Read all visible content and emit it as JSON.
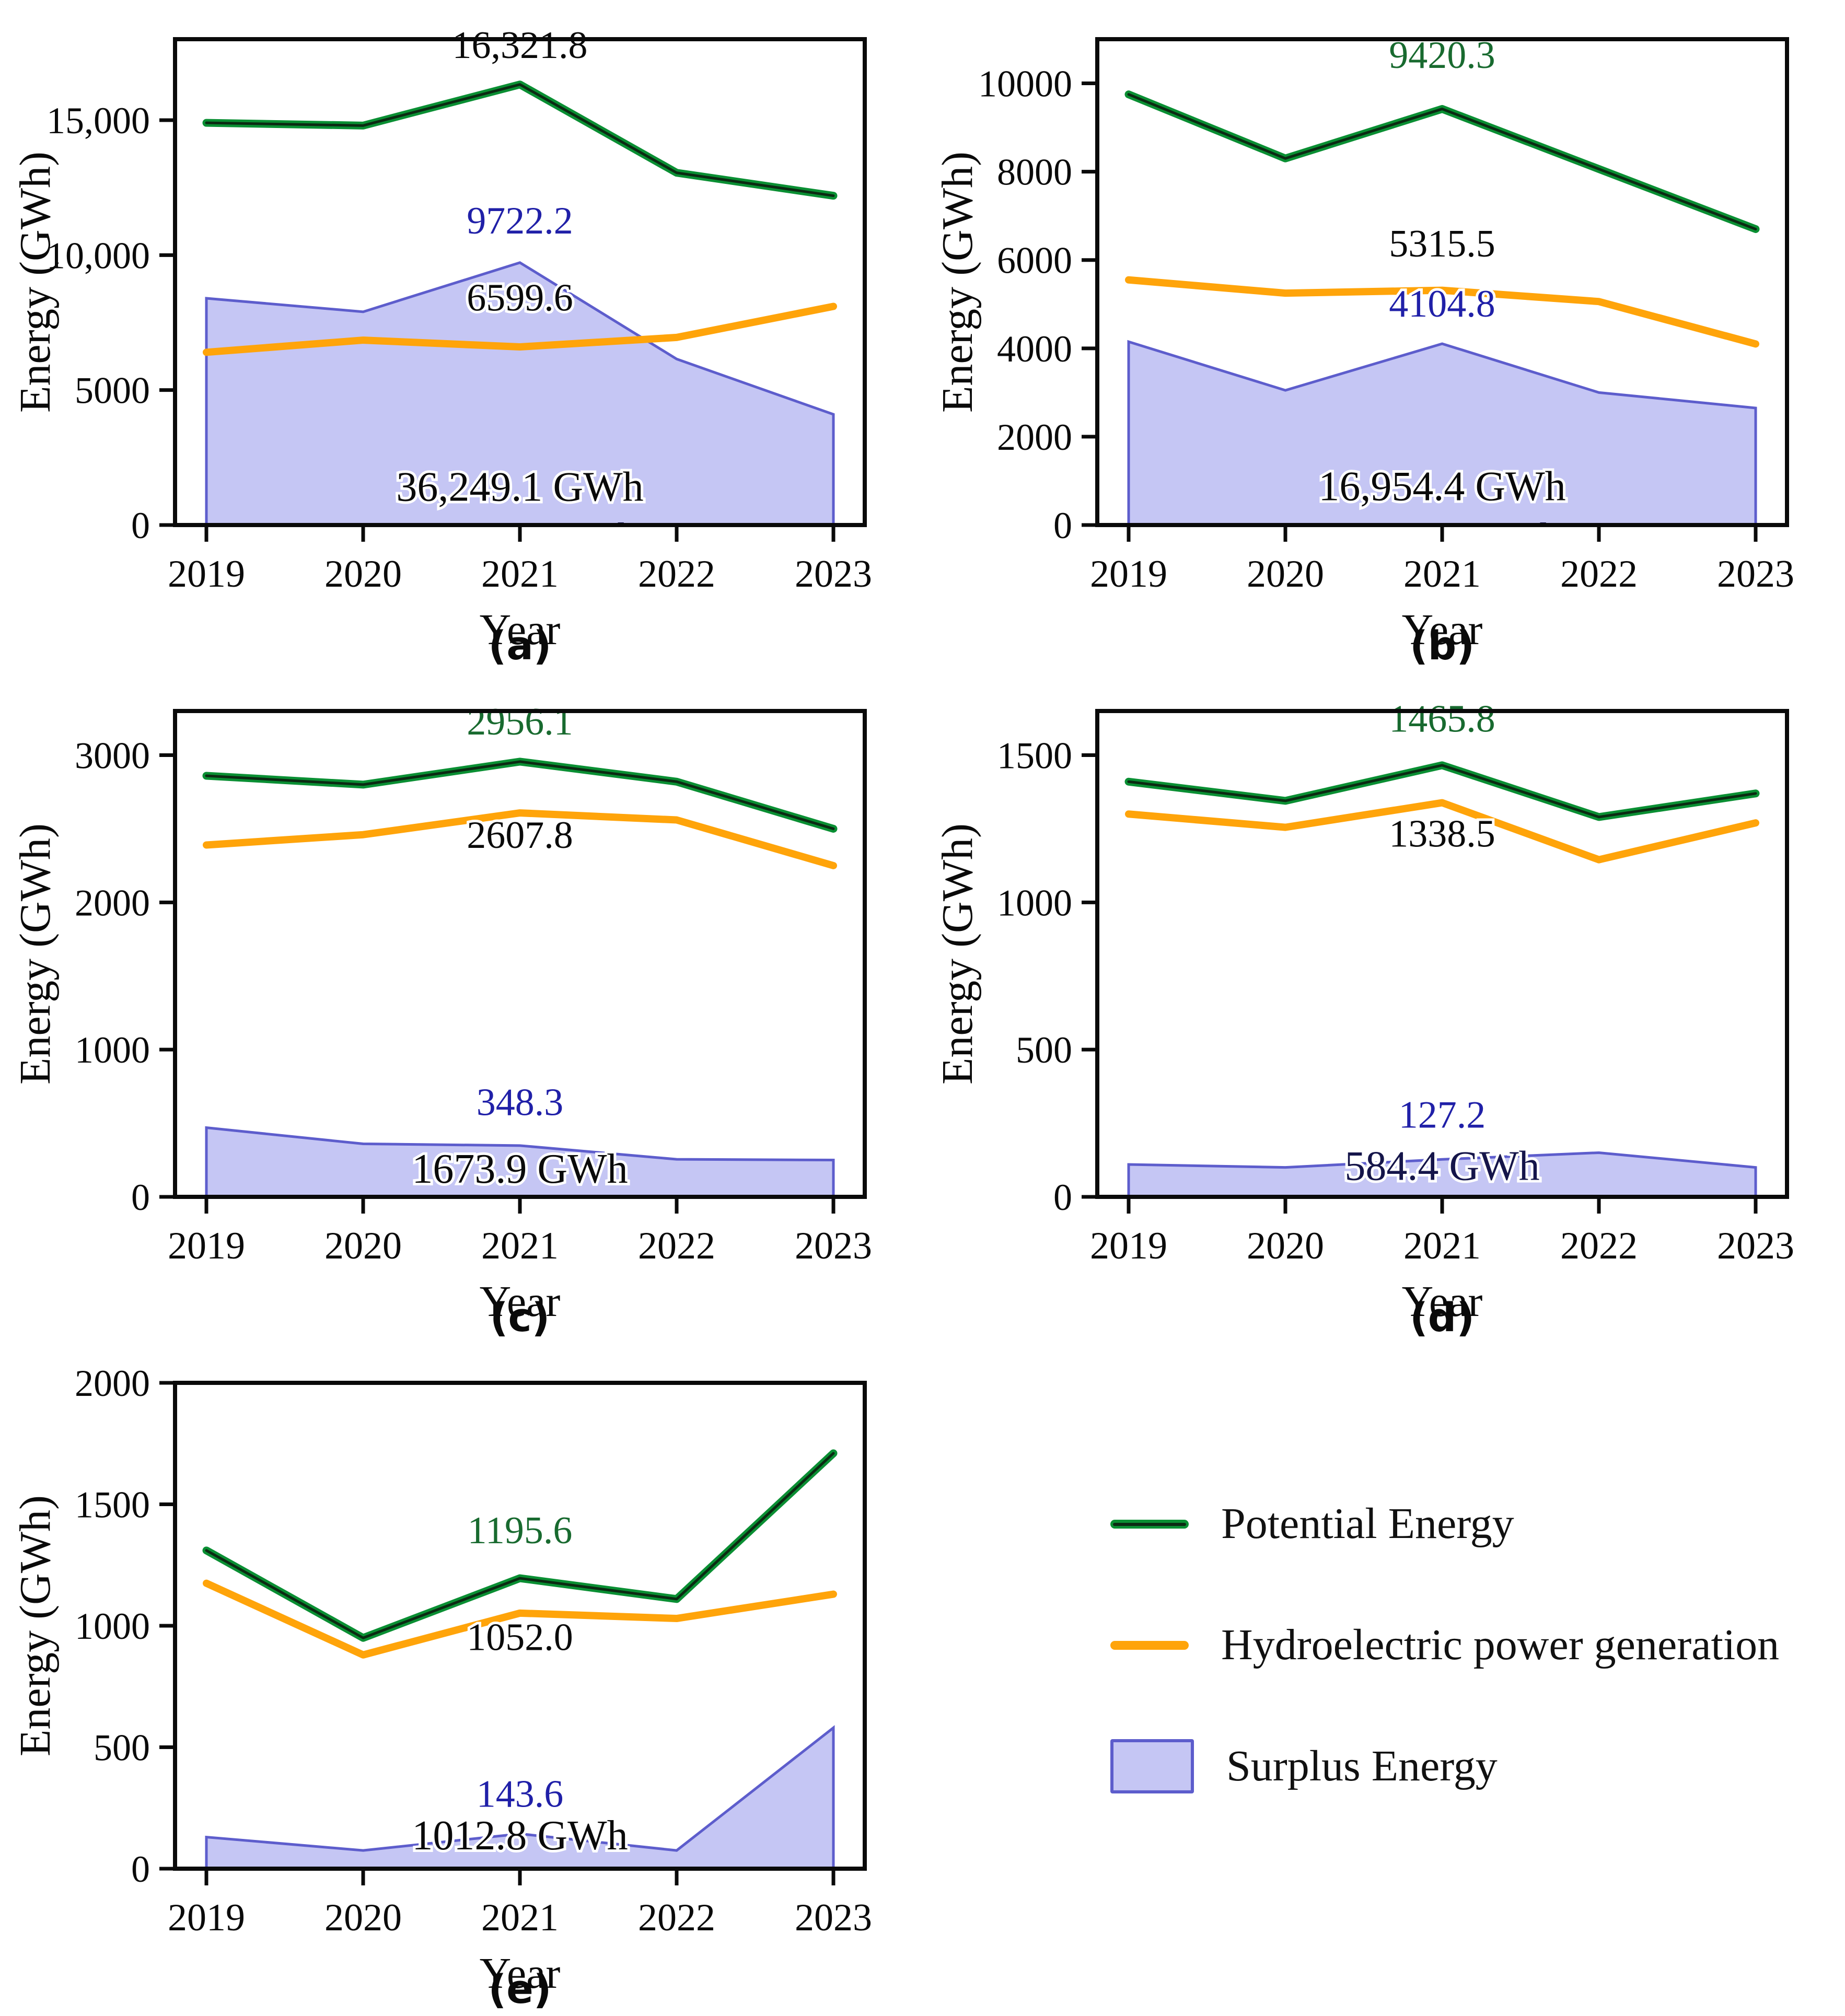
{
  "figure": {
    "xlabel": "Year",
    "ylabel": "Energy (GWh)",
    "years": [
      "2019",
      "2020",
      "2021",
      "2022",
      "2023"
    ]
  },
  "colors": {
    "potential_line": "#0a8f33",
    "potential_core": "#0b2a12",
    "hydro_line": "#ffa40a",
    "surplus_fill": "#c5c6f4",
    "surplus_edge": "#5d5dcc",
    "axis_black": "#0a0a0a",
    "annotation_black": "#0a0a0a",
    "annotation_green": "#186a2f",
    "annotation_navy": "#2020a8",
    "annotation_darknavy": "#15154a"
  },
  "legend": {
    "items": [
      {
        "label": "Potential Energy",
        "swatch": "line-green"
      },
      {
        "label": "Hydroelectric power generation",
        "swatch": "line-orange"
      },
      {
        "label": "Surplus Energy",
        "swatch": "patch-purple"
      }
    ]
  },
  "chart_data": [
    {
      "id": "a",
      "caption": "(a)",
      "type": "line+area",
      "x": [
        2019,
        2020,
        2021,
        2022,
        2023
      ],
      "xlabel": "Year",
      "ylabel": "Energy (GWh)",
      "ylim": [
        0,
        18000
      ],
      "yticks": [
        {
          "v": 0,
          "label": "0"
        },
        {
          "v": 5000,
          "label": "5000"
        },
        {
          "v": 10000,
          "label": "10,000"
        },
        {
          "v": 15000,
          "label": "15,000"
        }
      ],
      "series": [
        {
          "name": "Potential Energy",
          "kind": "line",
          "values": [
            14900,
            14800,
            16321.8,
            13050,
            12200
          ]
        },
        {
          "name": "Hydroelectric power generation",
          "kind": "line",
          "values": [
            6400,
            6850,
            6599.6,
            6950,
            8100
          ]
        },
        {
          "name": "Surplus Energy",
          "kind": "area",
          "values": [
            8400,
            7900,
            9722.2,
            6150,
            4100
          ]
        }
      ],
      "annotations": [
        {
          "text": "16,321.8",
          "color": "black",
          "year": 2021,
          "y": 17300
        },
        {
          "text": "9722.2",
          "color": "navy",
          "year": 2021,
          "y": 10800
        },
        {
          "text": "6599.6",
          "color": "black",
          "year": 2021,
          "y": 7950
        },
        {
          "text": "36,249.1 GWh",
          "color": "black",
          "year": 2021,
          "y": 900
        }
      ],
      "clipped_remnant": true
    },
    {
      "id": "b",
      "caption": "(b)",
      "type": "line+area",
      "x": [
        2019,
        2020,
        2021,
        2022,
        2023
      ],
      "xlabel": "Year",
      "ylabel": "Energy (GWh)",
      "ylim": [
        0,
        11000
      ],
      "yticks": [
        {
          "v": 0,
          "label": "0"
        },
        {
          "v": 2000,
          "label": "2000"
        },
        {
          "v": 4000,
          "label": "4000"
        },
        {
          "v": 6000,
          "label": "6000"
        },
        {
          "v": 8000,
          "label": "8000"
        },
        {
          "v": 10000,
          "label": "10000"
        }
      ],
      "series": [
        {
          "name": "Potential Energy",
          "kind": "line",
          "values": [
            9750,
            8300,
            9420.3,
            8060,
            6700
          ]
        },
        {
          "name": "Hydroelectric power generation",
          "kind": "line",
          "values": [
            5550,
            5250,
            5315.5,
            5060,
            4100
          ]
        },
        {
          "name": "Surplus Energy",
          "kind": "area",
          "values": [
            4150,
            3050,
            4104.8,
            3000,
            2650
          ]
        }
      ],
      "annotations": [
        {
          "text": "9420.3",
          "color": "green",
          "year": 2021,
          "y": 10350
        },
        {
          "text": "5315.5",
          "color": "black",
          "year": 2021,
          "y": 6080
        },
        {
          "text": "4104.8",
          "color": "navy",
          "year": 2021,
          "y": 4720
        },
        {
          "text": "16,954.4 GWh",
          "color": "black",
          "year": 2021,
          "y": 560
        }
      ],
      "clipped_remnant": true
    },
    {
      "id": "c",
      "caption": "(c)",
      "type": "line+area",
      "x": [
        2019,
        2020,
        2021,
        2022,
        2023
      ],
      "xlabel": "Year",
      "ylabel": "Energy (GWh)",
      "ylim": [
        0,
        3300
      ],
      "yticks": [
        {
          "v": 0,
          "label": "0"
        },
        {
          "v": 1000,
          "label": "1000"
        },
        {
          "v": 2000,
          "label": "2000"
        },
        {
          "v": 3000,
          "label": "3000"
        }
      ],
      "series": [
        {
          "name": "Potential Energy",
          "kind": "line",
          "values": [
            2860,
            2800,
            2956.1,
            2820,
            2500
          ]
        },
        {
          "name": "Hydroelectric power generation",
          "kind": "line",
          "values": [
            2390,
            2460,
            2607.8,
            2560,
            2250
          ]
        },
        {
          "name": "Surplus Energy",
          "kind": "area",
          "values": [
            470,
            360,
            348.3,
            255,
            250
          ]
        }
      ],
      "annotations": [
        {
          "text": "2956.1",
          "color": "green",
          "year": 2021,
          "y": 3140
        },
        {
          "text": "2607.8",
          "color": "black",
          "year": 2021,
          "y": 2370
        },
        {
          "text": "348.3",
          "color": "navy",
          "year": 2021,
          "y": 555
        },
        {
          "text": "1673.9 GWh",
          "color": "black",
          "year": 2021,
          "y": 95
        }
      ],
      "clipped_remnant": false
    },
    {
      "id": "d",
      "caption": "(d)",
      "type": "line+area",
      "x": [
        2019,
        2020,
        2021,
        2022,
        2023
      ],
      "xlabel": "Year",
      "ylabel": "Energy (GWh)",
      "ylim": [
        0,
        1650
      ],
      "yticks": [
        {
          "v": 0,
          "label": "0"
        },
        {
          "v": 500,
          "label": "500"
        },
        {
          "v": 1000,
          "label": "1000"
        },
        {
          "v": 1500,
          "label": "1500"
        }
      ],
      "series": [
        {
          "name": "Potential Energy",
          "kind": "line",
          "values": [
            1410,
            1345,
            1465.8,
            1290,
            1370
          ]
        },
        {
          "name": "Hydroelectric power generation",
          "kind": "line",
          "values": [
            1300,
            1255,
            1338.5,
            1145,
            1270
          ]
        },
        {
          "name": "Surplus Energy",
          "kind": "area",
          "values": [
            110,
            100,
            127.2,
            150,
            100
          ]
        }
      ],
      "annotations": [
        {
          "text": "1465.8",
          "color": "green",
          "year": 2021,
          "y": 1580
        },
        {
          "text": "1338.5",
          "color": "black",
          "year": 2021,
          "y": 1190
        },
        {
          "text": "127.2",
          "color": "navy",
          "year": 2021,
          "y": 235
        },
        {
          "text": "584.4 GWh",
          "color": "darknavy",
          "year": 2021,
          "y": 58
        }
      ],
      "clipped_remnant": false
    },
    {
      "id": "e",
      "caption": "(e)",
      "type": "line+area",
      "x": [
        2019,
        2020,
        2021,
        2022,
        2023
      ],
      "xlabel": "Year",
      "ylabel": "Energy (GWh)",
      "ylim": [
        0,
        2000
      ],
      "yticks": [
        {
          "v": 0,
          "label": "0"
        },
        {
          "v": 500,
          "label": "500"
        },
        {
          "v": 1000,
          "label": "1000"
        },
        {
          "v": 1500,
          "label": "1500"
        },
        {
          "v": 2000,
          "label": "2000"
        }
      ],
      "series": [
        {
          "name": "Potential Energy",
          "kind": "line",
          "values": [
            1310,
            950,
            1195.6,
            1110,
            1710
          ]
        },
        {
          "name": "Hydroelectric power generation",
          "kind": "line",
          "values": [
            1175,
            880,
            1052.0,
            1030,
            1130
          ]
        },
        {
          "name": "Surplus Energy",
          "kind": "area",
          "values": [
            130,
            75,
            143.6,
            75,
            580
          ]
        }
      ],
      "annotations": [
        {
          "text": "1195.6",
          "color": "green",
          "year": 2021,
          "y": 1340
        },
        {
          "text": "1052.0",
          "color": "black",
          "year": 2021,
          "y": 900
        },
        {
          "text": "143.6",
          "color": "navy",
          "year": 2021,
          "y": 255
        },
        {
          "text": "1012.8 GWh",
          "color": "black",
          "year": 2021,
          "y": 80
        }
      ],
      "clipped_remnant": false
    }
  ]
}
